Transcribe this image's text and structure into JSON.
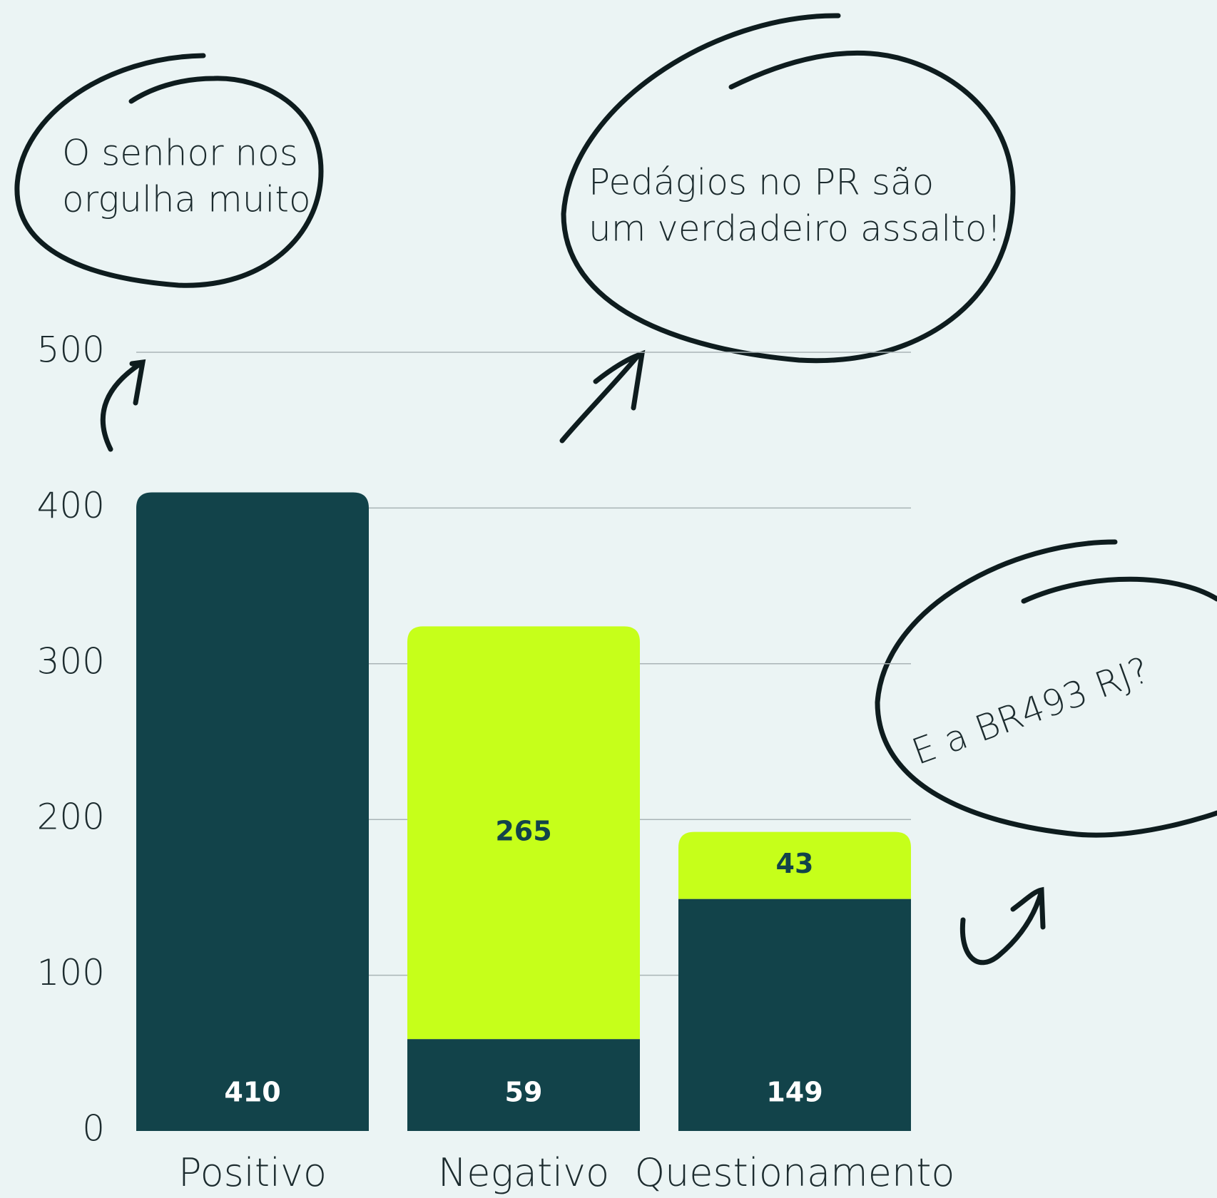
{
  "chart_data": {
    "type": "stacked_bar",
    "categories": [
      "Positivo",
      "Negativo",
      "Questionamento"
    ],
    "series": [
      {
        "color": "#12434a",
        "label_color": "#ffffff",
        "values": [
          410,
          59,
          149
        ]
      },
      {
        "color": "#c6ff1a",
        "label_color": "#12434a",
        "values": [
          null,
          265,
          43
        ]
      }
    ],
    "ylim": [
      0,
      500
    ],
    "yticks": [
      0,
      100,
      200,
      300,
      400,
      500
    ],
    "grid": true,
    "annotations": [
      [
        "O senhor nos",
        "orgulha muito"
      ],
      [
        "Pedágios no PR são",
        "um verdadeiro assalto!"
      ],
      [
        "E a BR493 RJ?"
      ]
    ]
  }
}
